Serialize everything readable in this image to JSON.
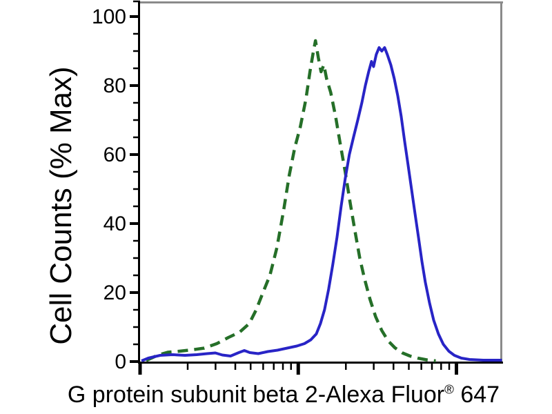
{
  "figure": {
    "y_axis_title": "Cell Counts (% Max)",
    "x_axis_title_main": "G protein subunit beta 2-Alexa Fluor",
    "x_axis_title_sup": "®",
    "x_axis_title_suffix": " 647"
  },
  "chart_data": {
    "type": "line",
    "title": "",
    "ylabel": "Cell Counts (% Max)",
    "xlabel": "G protein subunit beta 2-Alexa Fluor® 647",
    "x_scale": "log10, unlabeled fluorescence-intensity decades",
    "xlim": [
      0,
      2.29
    ],
    "ylim": [
      0,
      104.4
    ],
    "y_major_ticks": [
      0,
      20,
      40,
      60,
      80,
      100
    ],
    "y_minor_tick_step": 5,
    "x_major_tick_decades": [
      0,
      1,
      2
    ],
    "x_minor_ticks": "log10(2..9) within each decade",
    "grid": false,
    "legend": "none",
    "colors": {
      "axis": "#000000",
      "frame": "#8A8A8A",
      "blue_solid": "#2824C6",
      "green_dashed": "#256F28"
    },
    "series": [
      {
        "id": "dashed-green-curve",
        "name": "negative control (dashed dark green)",
        "color": "#256F28",
        "line_style": "dashed",
        "peak": {
          "x_decades": 1.11,
          "y_pct_max": 93
        },
        "points": [
          [
            0.039,
            0.3
          ],
          [
            0.109,
            1.8
          ],
          [
            0.175,
            2.7
          ],
          [
            0.249,
            3.0
          ],
          [
            0.328,
            3.4
          ],
          [
            0.406,
            3.9
          ],
          [
            0.485,
            5.2
          ],
          [
            0.559,
            7.0
          ],
          [
            0.629,
            8.5
          ],
          [
            0.69,
            11
          ],
          [
            0.734,
            15
          ],
          [
            0.777,
            20
          ],
          [
            0.821,
            25
          ],
          [
            0.865,
            33
          ],
          [
            0.908,
            44
          ],
          [
            0.943,
            54
          ],
          [
            0.978,
            62
          ],
          [
            1.013,
            68
          ],
          [
            1.048,
            76
          ],
          [
            1.074,
            84
          ],
          [
            1.096,
            90
          ],
          [
            1.109,
            93
          ],
          [
            1.127,
            88
          ],
          [
            1.144,
            84
          ],
          [
            1.162,
            86
          ],
          [
            1.179,
            82
          ],
          [
            1.205,
            78
          ],
          [
            1.236,
            71
          ],
          [
            1.266,
            63
          ],
          [
            1.297,
            55
          ],
          [
            1.328,
            46
          ],
          [
            1.358,
            38
          ],
          [
            1.389,
            30
          ],
          [
            1.419,
            24
          ],
          [
            1.454,
            18
          ],
          [
            1.489,
            13
          ],
          [
            1.528,
            9
          ],
          [
            1.568,
            6
          ],
          [
            1.611,
            4
          ],
          [
            1.659,
            2.5
          ],
          [
            1.707,
            1.6
          ],
          [
            1.755,
            1.0
          ],
          [
            1.812,
            0.5
          ],
          [
            1.869,
            0.2
          ]
        ]
      },
      {
        "id": "solid-blue-curve",
        "name": "antibody stained (solid blue)",
        "color": "#2824C6",
        "line_style": "solid",
        "peak": {
          "x_decades": 1.52,
          "y_pct_max": 91
        },
        "points": [
          [
            0.009,
            0.2
          ],
          [
            0.052,
            1.0
          ],
          [
            0.127,
            1.8
          ],
          [
            0.205,
            2.0
          ],
          [
            0.284,
            1.8
          ],
          [
            0.358,
            2.0
          ],
          [
            0.424,
            2.3
          ],
          [
            0.476,
            2.5
          ],
          [
            0.52,
            1.9
          ],
          [
            0.572,
            1.6
          ],
          [
            0.624,
            2.6
          ],
          [
            0.659,
            3.2
          ],
          [
            0.694,
            2.6
          ],
          [
            0.747,
            2.3
          ],
          [
            0.808,
            2.9
          ],
          [
            0.869,
            3.3
          ],
          [
            0.93,
            3.9
          ],
          [
            0.991,
            4.5
          ],
          [
            1.039,
            5.2
          ],
          [
            1.079,
            6.3
          ],
          [
            1.114,
            8.0
          ],
          [
            1.14,
            11
          ],
          [
            1.166,
            15
          ],
          [
            1.192,
            21
          ],
          [
            1.218,
            28
          ],
          [
            1.245,
            36
          ],
          [
            1.271,
            45
          ],
          [
            1.297,
            53
          ],
          [
            1.323,
            60
          ],
          [
            1.349,
            65
          ],
          [
            1.376,
            70
          ],
          [
            1.402,
            75
          ],
          [
            1.424,
            80
          ],
          [
            1.445,
            84
          ],
          [
            1.463,
            87
          ],
          [
            1.476,
            85.5
          ],
          [
            1.493,
            89
          ],
          [
            1.511,
            91
          ],
          [
            1.528,
            90
          ],
          [
            1.546,
            91
          ],
          [
            1.563,
            89
          ],
          [
            1.585,
            86
          ],
          [
            1.607,
            82
          ],
          [
            1.629,
            77
          ],
          [
            1.651,
            71
          ],
          [
            1.672,
            64
          ],
          [
            1.694,
            57
          ],
          [
            1.716,
            50
          ],
          [
            1.738,
            43
          ],
          [
            1.76,
            36
          ],
          [
            1.782,
            29
          ],
          [
            1.803,
            23
          ],
          [
            1.83,
            17
          ],
          [
            1.856,
            12
          ],
          [
            1.886,
            8
          ],
          [
            1.917,
            5
          ],
          [
            1.952,
            3
          ],
          [
            1.987,
            1.8
          ],
          [
            2.031,
            1.0
          ],
          [
            2.083,
            0.6
          ],
          [
            2.17,
            0.4
          ],
          [
            2.288,
            0.4
          ]
        ]
      }
    ]
  }
}
